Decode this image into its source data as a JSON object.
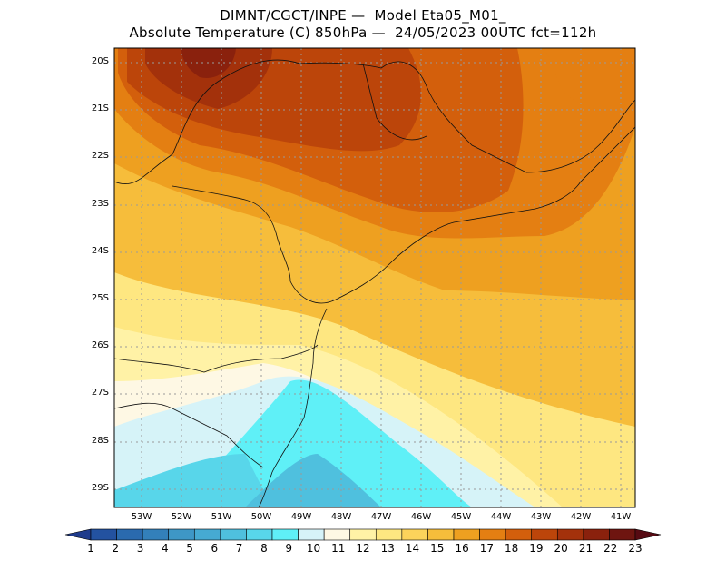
{
  "title": {
    "line1": "DIMNT/CGCT/INPE —  Model Eta05_M01_",
    "line2": "Absolute Temperature (C) 850hPa —  24/05/2023 00UTC fct=112h"
  },
  "map": {
    "lat_labels": [
      "20S",
      "21S",
      "22S",
      "23S",
      "24S",
      "25S",
      "26S",
      "27S",
      "28S",
      "29S"
    ],
    "lon_labels": [
      "53W",
      "52W",
      "51W",
      "50W",
      "49W",
      "48W",
      "47W",
      "46W",
      "45W",
      "44W",
      "43W",
      "42W",
      "41W"
    ]
  },
  "colorbar": {
    "labels": [
      "1",
      "2",
      "3",
      "4",
      "5",
      "6",
      "7",
      "8",
      "9",
      "10",
      "11",
      "12",
      "13",
      "14",
      "15",
      "16",
      "17",
      "18",
      "19",
      "20",
      "21",
      "22",
      "23"
    ],
    "colors": [
      "#1f3b8c",
      "#2352a0",
      "#2a6aae",
      "#3380ba",
      "#3e97c6",
      "#46aad2",
      "#4fc0de",
      "#58d6ea",
      "#5ff0f7",
      "#d6f3f8",
      "#fef8e4",
      "#fff2a6",
      "#fee781",
      "#fcd35b",
      "#f6bd3b",
      "#eea020",
      "#e47f12",
      "#d35f0c",
      "#bc450a",
      "#a3310b",
      "#8a210d",
      "#6e1510",
      "#560a12"
    ]
  }
}
